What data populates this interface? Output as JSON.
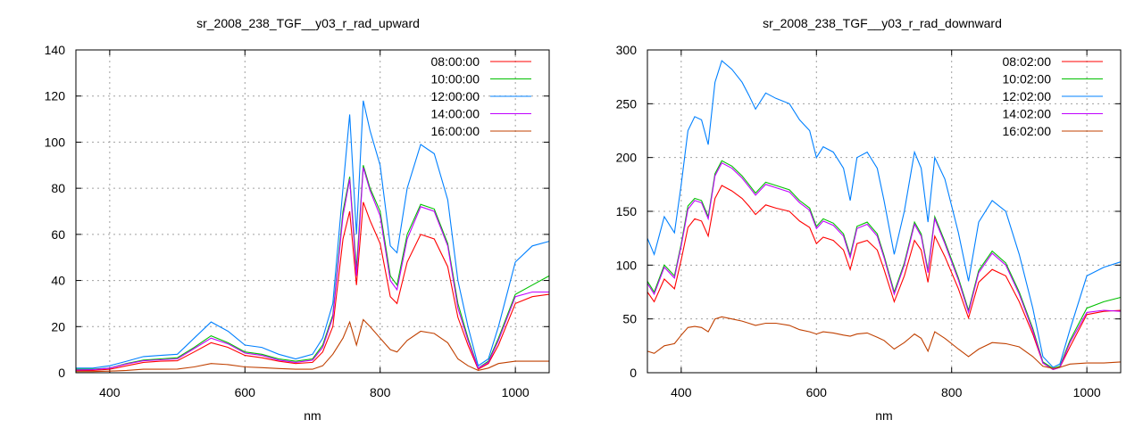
{
  "chart_data": [
    {
      "type": "line",
      "title": "sr_2008_238_TGF__y03_r_rad_upward",
      "xlabel": "nm",
      "ylabel": "",
      "xlim": [
        350,
        1050
      ],
      "ylim": [
        0,
        140
      ],
      "xticks": [
        400,
        600,
        800,
        1000
      ],
      "yticks": [
        0,
        20,
        40,
        60,
        80,
        100,
        120,
        140
      ],
      "grid": true,
      "legend_position": "top-right",
      "x": [
        350,
        375,
        400,
        425,
        450,
        475,
        500,
        525,
        550,
        575,
        600,
        625,
        650,
        675,
        700,
        715,
        730,
        745,
        755,
        765,
        775,
        785,
        800,
        815,
        825,
        840,
        860,
        880,
        900,
        915,
        930,
        945,
        960,
        975,
        1000,
        1025,
        1050
      ],
      "series": [
        {
          "name": "08:00:00",
          "color": "#ff0000",
          "values": [
            1,
            1,
            1.5,
            3,
            4.5,
            5,
            5.2,
            9,
            13,
            11,
            7.5,
            6.5,
            5,
            4,
            4.5,
            9,
            20,
            58,
            70,
            38,
            74,
            66,
            56,
            33,
            30,
            48,
            60,
            58,
            46,
            24,
            12,
            1.5,
            4,
            12,
            30,
            33,
            34
          ]
        },
        {
          "name": "10:00:00",
          "color": "#00c000",
          "values": [
            1.5,
            1.5,
            2,
            4,
            5.5,
            6,
            6.5,
            11,
            16,
            13,
            9,
            8,
            6,
            5,
            6,
            12,
            25,
            70,
            85,
            45,
            90,
            80,
            70,
            42,
            38,
            60,
            73,
            71,
            56,
            30,
            15,
            2,
            5,
            15,
            34,
            38,
            42
          ]
        },
        {
          "name": "12:00:00",
          "color": "#0080ff",
          "values": [
            2,
            2,
            3,
            5,
            7,
            7.5,
            8,
            15,
            22,
            18,
            12,
            11,
            8,
            6,
            8,
            15,
            30,
            80,
            112,
            60,
            118,
            105,
            90,
            55,
            52,
            80,
            99,
            95,
            75,
            40,
            20,
            3,
            6,
            20,
            48,
            55,
            57
          ]
        },
        {
          "name": "14:00:00",
          "color": "#c000ff",
          "values": [
            1.2,
            1.3,
            2,
            3.8,
            5.2,
            5.6,
            6,
            10.5,
            15,
            12.5,
            8.5,
            7.5,
            5.5,
            4.5,
            5.5,
            11,
            24,
            68,
            84,
            42,
            89,
            79,
            68,
            40,
            36,
            58,
            72,
            70,
            55,
            28,
            14,
            2,
            4.5,
            14,
            33,
            35,
            35
          ]
        },
        {
          "name": "16:00:00",
          "color": "#c04000",
          "values": [
            0.5,
            0.5,
            0.7,
            1,
            1.5,
            1.5,
            1.6,
            2.5,
            4,
            3.5,
            2.5,
            2.2,
            1.8,
            1.5,
            1.5,
            3,
            8,
            15,
            22,
            12,
            23,
            20,
            15,
            10,
            9,
            14,
            18,
            17,
            13,
            6,
            3,
            1,
            2,
            4,
            5,
            5,
            5
          ]
        }
      ]
    },
    {
      "type": "line",
      "title": "sr_2008_238_TGF__y03_r_rad_downward",
      "xlabel": "nm",
      "ylabel": "",
      "xlim": [
        350,
        1050
      ],
      "ylim": [
        0,
        300
      ],
      "xticks": [
        400,
        600,
        800,
        1000
      ],
      "yticks": [
        0,
        50,
        100,
        150,
        200,
        250,
        300
      ],
      "grid": true,
      "legend_position": "top-right",
      "x": [
        350,
        360,
        375,
        390,
        400,
        410,
        420,
        430,
        440,
        450,
        460,
        475,
        490,
        500,
        510,
        525,
        540,
        560,
        575,
        590,
        600,
        610,
        625,
        640,
        650,
        660,
        675,
        690,
        700,
        715,
        730,
        745,
        755,
        765,
        775,
        790,
        810,
        825,
        840,
        860,
        880,
        900,
        920,
        935,
        950,
        960,
        975,
        1000,
        1025,
        1050
      ],
      "series": [
        {
          "name": "08:02:00",
          "color": "#ff0000",
          "values": [
            75,
            66,
            87,
            78,
            105,
            135,
            143,
            141,
            127,
            162,
            174,
            169,
            162,
            155,
            147,
            156,
            153,
            150,
            141,
            135,
            120,
            126,
            123,
            114,
            96,
            120,
            123,
            114,
            96,
            66,
            90,
            123,
            114,
            84,
            127,
            108,
            78,
            51,
            84,
            96,
            90,
            66,
            36,
            9,
            3,
            5,
            24,
            54,
            57,
            58
          ]
        },
        {
          "name": "10:02:00",
          "color": "#00c000",
          "values": [
            85,
            75,
            100,
            90,
            120,
            155,
            162,
            160,
            145,
            185,
            197,
            192,
            183,
            175,
            167,
            177,
            174,
            170,
            160,
            153,
            136,
            143,
            139,
            129,
            109,
            136,
            140,
            129,
            109,
            75,
            102,
            140,
            129,
            95,
            145,
            122,
            88,
            58,
            95,
            113,
            102,
            75,
            41,
            10,
            4,
            6,
            30,
            60,
            66,
            70
          ]
        },
        {
          "name": "12:02:00",
          "color": "#0080ff",
          "values": [
            125,
            110,
            145,
            130,
            175,
            225,
            238,
            235,
            212,
            270,
            290,
            282,
            270,
            258,
            245,
            260,
            255,
            250,
            235,
            225,
            200,
            210,
            205,
            190,
            160,
            200,
            205,
            190,
            160,
            110,
            150,
            205,
            190,
            140,
            200,
            180,
            130,
            85,
            140,
            160,
            150,
            110,
            60,
            15,
            5,
            8,
            40,
            90,
            98,
            103
          ]
        },
        {
          "name": "14:02:00",
          "color": "#c000ff",
          "values": [
            83,
            73,
            98,
            88,
            118,
            152,
            160,
            158,
            143,
            183,
            195,
            190,
            181,
            173,
            165,
            175,
            172,
            168,
            158,
            151,
            134,
            141,
            137,
            127,
            107,
            134,
            138,
            127,
            107,
            73,
            100,
            138,
            127,
            93,
            143,
            120,
            86,
            56,
            93,
            111,
            100,
            73,
            39,
            9,
            3,
            5,
            28,
            56,
            58,
            57
          ]
        },
        {
          "name": "16:02:00",
          "color": "#c04000",
          "values": [
            20,
            18,
            25,
            27,
            35,
            42,
            43,
            42,
            38,
            50,
            52,
            50,
            48,
            46,
            44,
            46,
            46,
            44,
            40,
            38,
            36,
            38,
            37,
            35,
            34,
            36,
            37,
            33,
            30,
            22,
            28,
            36,
            32,
            20,
            38,
            32,
            22,
            15,
            22,
            28,
            27,
            24,
            15,
            6,
            4,
            5,
            8,
            9,
            9,
            10
          ]
        }
      ]
    }
  ]
}
